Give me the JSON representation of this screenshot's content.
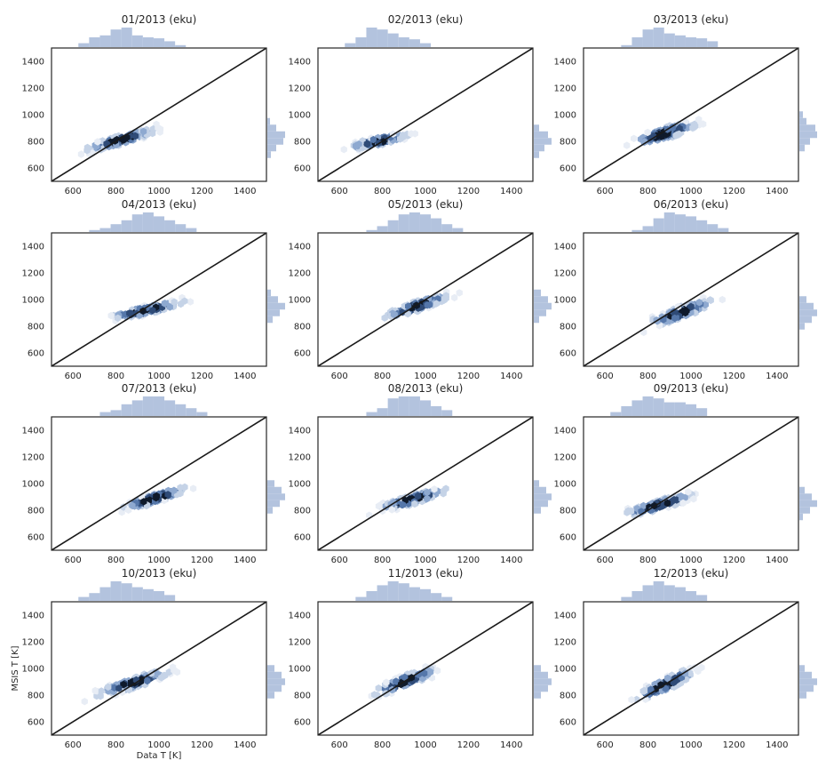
{
  "figure": {
    "xlabel": "Data T [K]",
    "ylabel": "MSIS T [K]"
  },
  "style": {
    "hex_colors": [
      "#e8edf5",
      "#c5d3e7",
      "#8ea9d0",
      "#5577aa",
      "#2f4b77",
      "#0f1a2b"
    ],
    "marginal_color": "#b3c3de",
    "line_color": "#1a1a1a"
  },
  "chart_data": [
    {
      "type": "hexbin",
      "title": "01/2013 (eku)",
      "xlim": [
        500,
        1500
      ],
      "ylim": [
        500,
        1500
      ],
      "xticks": [
        600,
        800,
        1000,
        1200,
        1400
      ],
      "yticks": [
        600,
        800,
        1000,
        1200,
        1400
      ],
      "reference_line": "y = x",
      "center": [
        820,
        810
      ],
      "spread": [
        140,
        45
      ],
      "slope": 0.45,
      "marginal_x": [
        [
          650,
          0.2
        ],
        [
          700,
          0.5
        ],
        [
          750,
          0.6
        ],
        [
          800,
          0.9
        ],
        [
          850,
          1.0
        ],
        [
          900,
          0.6
        ],
        [
          950,
          0.5
        ],
        [
          1000,
          0.45
        ],
        [
          1050,
          0.3
        ],
        [
          1100,
          0.1
        ]
      ],
      "marginal_y": [
        [
          700,
          0.2
        ],
        [
          750,
          0.5
        ],
        [
          800,
          0.9
        ],
        [
          850,
          1.0
        ],
        [
          900,
          0.5
        ],
        [
          950,
          0.15
        ]
      ]
    },
    {
      "type": "hexbin",
      "title": "02/2013 (eku)",
      "xlim": [
        500,
        1500
      ],
      "ylim": [
        500,
        1500
      ],
      "xticks": [
        600,
        800,
        1000,
        1200,
        1400
      ],
      "yticks": [
        600,
        800,
        1000,
        1200,
        1400
      ],
      "reference_line": "y = x",
      "center": [
        780,
        800
      ],
      "spread": [
        120,
        40
      ],
      "slope": 0.35,
      "marginal_x": [
        [
          650,
          0.2
        ],
        [
          700,
          0.5
        ],
        [
          750,
          1.0
        ],
        [
          800,
          0.9
        ],
        [
          850,
          0.7
        ],
        [
          900,
          0.5
        ],
        [
          950,
          0.4
        ],
        [
          1000,
          0.2
        ]
      ],
      "marginal_y": [
        [
          700,
          0.3
        ],
        [
          750,
          0.6
        ],
        [
          800,
          1.0
        ],
        [
          850,
          0.8
        ],
        [
          900,
          0.3
        ]
      ]
    },
    {
      "type": "hexbin",
      "title": "03/2013 (eku)",
      "xlim": [
        500,
        1500
      ],
      "ylim": [
        500,
        1500
      ],
      "xticks": [
        600,
        800,
        1000,
        1200,
        1400
      ],
      "yticks": [
        600,
        800,
        1000,
        1200,
        1400
      ],
      "reference_line": "y = x",
      "center": [
        880,
        860
      ],
      "spread": [
        130,
        55
      ],
      "slope": 0.5,
      "marginal_x": [
        [
          700,
          0.1
        ],
        [
          750,
          0.5
        ],
        [
          800,
          0.9
        ],
        [
          850,
          1.0
        ],
        [
          900,
          0.7
        ],
        [
          950,
          0.6
        ],
        [
          1000,
          0.5
        ],
        [
          1050,
          0.45
        ],
        [
          1100,
          0.3
        ]
      ],
      "marginal_y": [
        [
          750,
          0.3
        ],
        [
          800,
          0.6
        ],
        [
          850,
          1.0
        ],
        [
          900,
          0.9
        ],
        [
          950,
          0.4
        ],
        [
          1000,
          0.2
        ]
      ]
    },
    {
      "type": "hexbin",
      "title": "04/2013 (eku)",
      "xlim": [
        500,
        1500
      ],
      "ylim": [
        500,
        1500
      ],
      "xticks": [
        600,
        800,
        1000,
        1200,
        1400
      ],
      "yticks": [
        600,
        800,
        1000,
        1200,
        1400
      ],
      "reference_line": "y = x",
      "center": [
        940,
        920
      ],
      "spread": [
        150,
        40
      ],
      "slope": 0.35,
      "marginal_x": [
        [
          700,
          0.1
        ],
        [
          750,
          0.2
        ],
        [
          800,
          0.4
        ],
        [
          850,
          0.6
        ],
        [
          900,
          0.9
        ],
        [
          950,
          1.0
        ],
        [
          1000,
          0.8
        ],
        [
          1050,
          0.6
        ],
        [
          1100,
          0.4
        ],
        [
          1150,
          0.2
        ]
      ],
      "marginal_y": [
        [
          850,
          0.3
        ],
        [
          900,
          0.7
        ],
        [
          950,
          1.0
        ],
        [
          1000,
          0.6
        ],
        [
          1050,
          0.2
        ]
      ]
    },
    {
      "type": "hexbin",
      "title": "05/2013 (eku)",
      "xlim": [
        500,
        1500
      ],
      "ylim": [
        500,
        1500
      ],
      "xticks": [
        600,
        800,
        1000,
        1200,
        1400
      ],
      "yticks": [
        600,
        800,
        1000,
        1200,
        1400
      ],
      "reference_line": "y = x",
      "center": [
        960,
        950
      ],
      "spread": [
        130,
        50
      ],
      "slope": 0.55,
      "marginal_x": [
        [
          750,
          0.1
        ],
        [
          800,
          0.3
        ],
        [
          850,
          0.6
        ],
        [
          900,
          0.9
        ],
        [
          950,
          1.0
        ],
        [
          1000,
          0.9
        ],
        [
          1050,
          0.7
        ],
        [
          1100,
          0.4
        ],
        [
          1150,
          0.2
        ]
      ],
      "marginal_y": [
        [
          850,
          0.3
        ],
        [
          900,
          0.7
        ],
        [
          950,
          1.0
        ],
        [
          1000,
          0.8
        ],
        [
          1050,
          0.4
        ]
      ]
    },
    {
      "type": "hexbin",
      "title": "06/2013 (eku)",
      "xlim": [
        500,
        1500
      ],
      "ylim": [
        500,
        1500
      ],
      "xticks": [
        600,
        800,
        1000,
        1200,
        1400
      ],
      "yticks": [
        600,
        800,
        1000,
        1200,
        1400
      ],
      "reference_line": "y = x",
      "center": [
        950,
        900
      ],
      "spread": [
        130,
        55
      ],
      "slope": 0.6,
      "marginal_x": [
        [
          750,
          0.1
        ],
        [
          800,
          0.3
        ],
        [
          850,
          0.7
        ],
        [
          900,
          1.0
        ],
        [
          950,
          0.9
        ],
        [
          1000,
          0.8
        ],
        [
          1050,
          0.6
        ],
        [
          1100,
          0.4
        ],
        [
          1150,
          0.2
        ]
      ],
      "marginal_y": [
        [
          800,
          0.3
        ],
        [
          850,
          0.7
        ],
        [
          900,
          1.0
        ],
        [
          950,
          0.8
        ],
        [
          1000,
          0.4
        ]
      ]
    },
    {
      "type": "hexbin",
      "title": "07/2013 (eku)",
      "xlim": [
        500,
        1500
      ],
      "ylim": [
        500,
        1500
      ],
      "xticks": [
        600,
        800,
        1000,
        1200,
        1400
      ],
      "yticks": [
        600,
        800,
        1000,
        1200,
        1400
      ],
      "reference_line": "y = x",
      "center": [
        980,
        890
      ],
      "spread": [
        130,
        45
      ],
      "slope": 0.5,
      "marginal_x": [
        [
          750,
          0.2
        ],
        [
          800,
          0.3
        ],
        [
          850,
          0.6
        ],
        [
          900,
          0.8
        ],
        [
          950,
          1.0
        ],
        [
          1000,
          1.0
        ],
        [
          1050,
          0.8
        ],
        [
          1100,
          0.6
        ],
        [
          1150,
          0.4
        ],
        [
          1200,
          0.2
        ]
      ],
      "marginal_y": [
        [
          800,
          0.3
        ],
        [
          850,
          0.7
        ],
        [
          900,
          1.0
        ],
        [
          950,
          0.8
        ],
        [
          1000,
          0.4
        ]
      ]
    },
    {
      "type": "hexbin",
      "title": "08/2013 (eku)",
      "xlim": [
        500,
        1500
      ],
      "ylim": [
        500,
        1500
      ],
      "xticks": [
        600,
        800,
        1000,
        1200,
        1400
      ],
      "yticks": [
        600,
        800,
        1000,
        1200,
        1400
      ],
      "reference_line": "y = x",
      "center": [
        940,
        880
      ],
      "spread": [
        140,
        45
      ],
      "slope": 0.45,
      "marginal_x": [
        [
          750,
          0.2
        ],
        [
          800,
          0.4
        ],
        [
          850,
          0.9
        ],
        [
          900,
          1.0
        ],
        [
          950,
          1.0
        ],
        [
          1000,
          0.8
        ],
        [
          1050,
          0.5
        ],
        [
          1100,
          0.3
        ]
      ],
      "marginal_y": [
        [
          800,
          0.4
        ],
        [
          850,
          0.8
        ],
        [
          900,
          1.0
        ],
        [
          950,
          0.7
        ],
        [
          1000,
          0.3
        ]
      ]
    },
    {
      "type": "hexbin",
      "title": "09/2013 (eku)",
      "xlim": [
        500,
        1500
      ],
      "ylim": [
        500,
        1500
      ],
      "xticks": [
        600,
        800,
        1000,
        1200,
        1400
      ],
      "yticks": [
        600,
        800,
        1000,
        1200,
        1400
      ],
      "reference_line": "y = x",
      "center": [
        850,
        840
      ],
      "spread": [
        140,
        45
      ],
      "slope": 0.45,
      "marginal_x": [
        [
          650,
          0.2
        ],
        [
          700,
          0.5
        ],
        [
          750,
          0.8
        ],
        [
          800,
          1.0
        ],
        [
          850,
          0.9
        ],
        [
          900,
          0.7
        ],
        [
          950,
          0.7
        ],
        [
          1000,
          0.6
        ],
        [
          1050,
          0.4
        ]
      ],
      "marginal_y": [
        [
          750,
          0.2
        ],
        [
          800,
          0.6
        ],
        [
          850,
          1.0
        ],
        [
          900,
          0.7
        ],
        [
          950,
          0.3
        ]
      ]
    },
    {
      "type": "hexbin",
      "title": "10/2013 (eku)",
      "xlim": [
        500,
        1500
      ],
      "ylim": [
        500,
        1500
      ],
      "xticks": [
        600,
        800,
        1000,
        1200,
        1400
      ],
      "yticks": [
        600,
        800,
        1000,
        1200,
        1400
      ],
      "reference_line": "y = x",
      "center": [
        880,
        890
      ],
      "spread": [
        150,
        50
      ],
      "slope": 0.5,
      "marginal_x": [
        [
          650,
          0.2
        ],
        [
          700,
          0.4
        ],
        [
          750,
          0.7
        ],
        [
          800,
          1.0
        ],
        [
          850,
          0.9
        ],
        [
          900,
          0.7
        ],
        [
          950,
          0.6
        ],
        [
          1000,
          0.5
        ],
        [
          1050,
          0.3
        ]
      ],
      "marginal_y": [
        [
          800,
          0.4
        ],
        [
          850,
          0.8
        ],
        [
          900,
          1.0
        ],
        [
          950,
          0.8
        ],
        [
          1000,
          0.4
        ]
      ]
    },
    {
      "type": "hexbin",
      "title": "11/2013 (eku)",
      "xlim": [
        500,
        1500
      ],
      "ylim": [
        500,
        1500
      ],
      "xticks": [
        600,
        800,
        1000,
        1200,
        1400
      ],
      "yticks": [
        600,
        800,
        1000,
        1200,
        1400
      ],
      "reference_line": "y = x",
      "center": [
        900,
        900
      ],
      "spread": [
        130,
        55
      ],
      "slope": 0.6,
      "marginal_x": [
        [
          700,
          0.2
        ],
        [
          750,
          0.5
        ],
        [
          800,
          0.8
        ],
        [
          850,
          1.0
        ],
        [
          900,
          0.9
        ],
        [
          950,
          0.7
        ],
        [
          1000,
          0.6
        ],
        [
          1050,
          0.4
        ],
        [
          1100,
          0.2
        ]
      ],
      "marginal_y": [
        [
          800,
          0.4
        ],
        [
          850,
          0.8
        ],
        [
          900,
          1.0
        ],
        [
          950,
          0.8
        ],
        [
          1000,
          0.4
        ]
      ]
    },
    {
      "type": "hexbin",
      "title": "12/2013 (eku)",
      "xlim": [
        500,
        1500
      ],
      "ylim": [
        500,
        1500
      ],
      "xticks": [
        600,
        800,
        1000,
        1200,
        1400
      ],
      "yticks": [
        600,
        800,
        1000,
        1200,
        1400
      ],
      "reference_line": "y = x",
      "center": [
        880,
        880
      ],
      "spread": [
        120,
        60
      ],
      "slope": 0.75,
      "marginal_x": [
        [
          700,
          0.2
        ],
        [
          750,
          0.5
        ],
        [
          800,
          0.8
        ],
        [
          850,
          1.0
        ],
        [
          900,
          0.8
        ],
        [
          950,
          0.7
        ],
        [
          1000,
          0.5
        ],
        [
          1050,
          0.3
        ]
      ],
      "marginal_y": [
        [
          800,
          0.4
        ],
        [
          850,
          0.8
        ],
        [
          900,
          1.0
        ],
        [
          950,
          0.7
        ],
        [
          1000,
          0.3
        ]
      ]
    }
  ]
}
